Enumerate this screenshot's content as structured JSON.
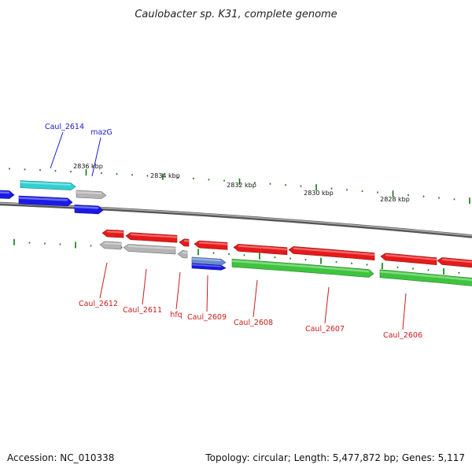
{
  "title": "Caulobacter sp. K31, complete genome",
  "footer": {
    "accession": "Accession: NC_010338",
    "summary": "Topology: circular; Length: 5,477,872 bp; Genes: 5,117"
  },
  "colors": {
    "plus_cds": "#1a1ae6",
    "plus_rna": "#2fd0d0",
    "minus_cds": "#e61a1a",
    "minus_other": "#3ec43e",
    "gray_gene": "#b4b4b4",
    "backbone": "#7a7a7a",
    "tick": "#0a7a0a",
    "label_plus": "#1a1acc",
    "label_minus": "#cc1a1a"
  },
  "ruler": {
    "labels": [
      {
        "text": "2836 kbp",
        "pos": 2836
      },
      {
        "text": "2834 kbp",
        "pos": 2834
      },
      {
        "text": "2832 kbp",
        "pos": 2832
      },
      {
        "text": "2830 kbp",
        "pos": 2830
      },
      {
        "text": "2828 kbp",
        "pos": 2828
      }
    ]
  },
  "labels": {
    "plus": [
      {
        "text": "Caul_2614"
      },
      {
        "text": "mazG"
      }
    ],
    "minus": [
      {
        "text": "Caul_2612"
      },
      {
        "text": "Caul_2611"
      },
      {
        "text": "hfq"
      },
      {
        "text": "Caul_2609"
      },
      {
        "text": "Caul_2608"
      },
      {
        "text": "Caul_2607"
      },
      {
        "text": "Caul_2606"
      }
    ]
  }
}
